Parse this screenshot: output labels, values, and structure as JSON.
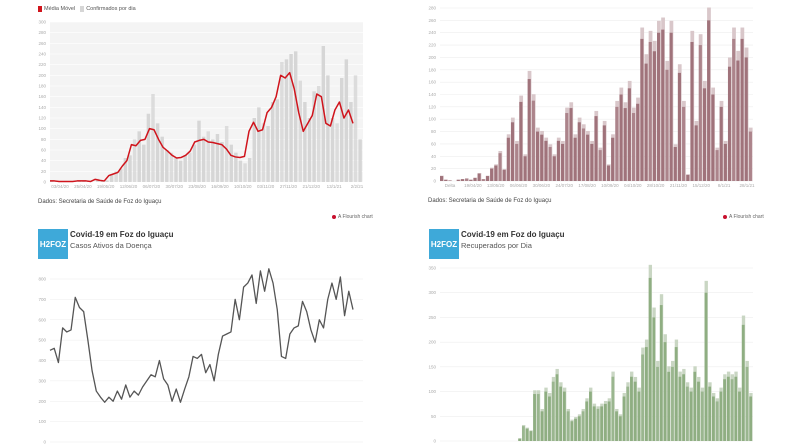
{
  "colors": {
    "red": "#d0141c",
    "confirmed": "#d6d6d6",
    "mauve": "#a0737b",
    "mauve_light": "#d9c7ca",
    "gray_line": "#555555",
    "green": "#8fae82",
    "green_light": "#c9d6c3",
    "logo": "#3ea9d9"
  },
  "common": {
    "source": "Dados: Secretaria de Saúde de Foz do Iguaçu",
    "flourish": "A Flourish chart",
    "title": "Covid-19 em Foz do Iguaçu",
    "logo_text": "H2FOZ"
  },
  "chart_data": [
    {
      "type": "bar+line",
      "legend": [
        "Média Móvel",
        "Confirmados por dia"
      ],
      "ylim": [
        0,
        300
      ],
      "yticks": [
        0,
        20,
        40,
        60,
        80,
        100,
        120,
        140,
        160,
        180,
        200,
        220,
        240,
        260,
        280,
        300
      ],
      "xticks": [
        "03/04/20",
        "25/04/20",
        "19/05/20",
        "12/06/20",
        "06/07/20",
        "30/07/20",
        "23/08/20",
        "16/09/20",
        "10/10/20",
        "03/11/20",
        "27/11/20",
        "21/12/20",
        "13/1/21",
        "2/2/21"
      ],
      "line": [
        2,
        2,
        1,
        1,
        1,
        1,
        2,
        2,
        2,
        1,
        5,
        3,
        2,
        12,
        15,
        18,
        30,
        40,
        70,
        68,
        78,
        80,
        100,
        98,
        80,
        65,
        58,
        50,
        45,
        46,
        50,
        58,
        75,
        78,
        80,
        75,
        74,
        72,
        70,
        62,
        50,
        47,
        46,
        48,
        95,
        112,
        95,
        98,
        130,
        140,
        160,
        200,
        195,
        205,
        175,
        130,
        95,
        110,
        125,
        165,
        160,
        110,
        105,
        135,
        150,
        120,
        135,
        110
      ],
      "bars": [
        3,
        1,
        0,
        2,
        0,
        1,
        3,
        2,
        1,
        0,
        6,
        2,
        3,
        15,
        20,
        25,
        45,
        50,
        80,
        95,
        70,
        128,
        165,
        110,
        85,
        60,
        55,
        45,
        40,
        50,
        55,
        70,
        115,
        85,
        95,
        80,
        90,
        75,
        105,
        70,
        55,
        40,
        35,
        45,
        120,
        140,
        110,
        105,
        150,
        155,
        225,
        230,
        240,
        245,
        190,
        150,
        120,
        170,
        180,
        255,
        200,
        120,
        110,
        195,
        230,
        150,
        200,
        80
      ]
    },
    {
      "type": "bar",
      "ylim": [
        0,
        280
      ],
      "yticks": [
        0,
        20,
        40,
        60,
        80,
        100,
        120,
        140,
        160,
        180,
        200,
        220,
        240,
        260,
        280
      ],
      "xticks": [
        "Delta",
        "19/04/20",
        "13/05/20",
        "06/06/20",
        "30/06/20",
        "24/07/20",
        "17/08/20",
        "10/09/20",
        "04/10/20",
        "28/10/20",
        "21/11/20",
        "15/12/20",
        "8/1/21",
        "28/1/21"
      ],
      "values": [
        8,
        2,
        1,
        0,
        2,
        3,
        4,
        2,
        5,
        12,
        3,
        8,
        20,
        25,
        45,
        18,
        70,
        95,
        60,
        128,
        40,
        165,
        130,
        80,
        75,
        65,
        55,
        40,
        65,
        60,
        110,
        118,
        70,
        95,
        85,
        75,
        60,
        105,
        50,
        90,
        25,
        70,
        120,
        140,
        118,
        150,
        110,
        125,
        230,
        190,
        225,
        210,
        240,
        245,
        180,
        240,
        55,
        175,
        120,
        10,
        225,
        90,
        220,
        150,
        260,
        140,
        50,
        120,
        60,
        185,
        230,
        195,
        230,
        200,
        80
      ]
    },
    {
      "type": "line",
      "title": "Covid-19 em Foz do Iguaçu",
      "subtitle": "Casos Ativos da Doença",
      "ylim": [
        0,
        800
      ],
      "yticks": [
        0,
        100,
        200,
        300,
        400,
        500,
        600,
        700,
        800
      ],
      "values": [
        450,
        460,
        390,
        560,
        540,
        550,
        710,
        660,
        640,
        500,
        350,
        250,
        220,
        195,
        220,
        200,
        250,
        210,
        280,
        220,
        250,
        230,
        270,
        300,
        330,
        320,
        400,
        310,
        280,
        200,
        260,
        195,
        260,
        320,
        420,
        410,
        430,
        340,
        380,
        300,
        430,
        520,
        530,
        540,
        700,
        600,
        760,
        780,
        820,
        680,
        840,
        740,
        850,
        780,
        650,
        420,
        410,
        530,
        560,
        570,
        690,
        640,
        550,
        490,
        600,
        560,
        700,
        780,
        700,
        810,
        620,
        740,
        650
      ]
    },
    {
      "type": "bar",
      "title": "Covid-19 em Foz do Iguaçu",
      "subtitle": "Recuperados por Dia",
      "ylim": [
        0,
        350
      ],
      "yticks": [
        0,
        50,
        100,
        150,
        200,
        250,
        300,
        350
      ],
      "values": [
        0,
        0,
        0,
        0,
        0,
        0,
        0,
        0,
        0,
        0,
        0,
        0,
        0,
        0,
        0,
        0,
        0,
        0,
        0,
        0,
        0,
        5,
        30,
        25,
        20,
        95,
        95,
        60,
        100,
        90,
        120,
        135,
        110,
        100,
        60,
        40,
        45,
        50,
        60,
        80,
        100,
        70,
        65,
        70,
        75,
        80,
        130,
        60,
        50,
        90,
        110,
        130,
        120,
        100,
        175,
        190,
        330,
        250,
        150,
        275,
        200,
        140,
        150,
        190,
        130,
        135,
        110,
        100,
        140,
        120,
        100,
        300,
        110,
        90,
        80,
        100,
        125,
        130,
        125,
        130,
        100,
        235,
        150,
        90
      ]
    }
  ]
}
